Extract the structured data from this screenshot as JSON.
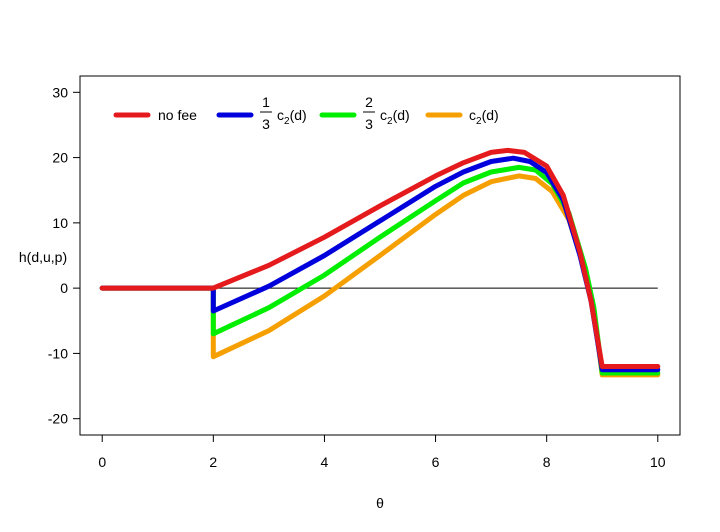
{
  "chart_data": {
    "type": "line",
    "title": "",
    "xlabel": "θ",
    "ylabel": "h(d,u,p)",
    "xlim": [
      -0.4,
      10.4
    ],
    "ylim": [
      -22.5,
      32.5
    ],
    "xticks": [
      0,
      2,
      4,
      6,
      8,
      10
    ],
    "yticks": [
      -20,
      -10,
      0,
      10,
      20,
      30
    ],
    "xtick_labels": [
      "0",
      "2",
      "4",
      "6",
      "8",
      "10"
    ],
    "ytick_labels": [
      "-20",
      "-10",
      "0",
      "10",
      "20",
      "30"
    ],
    "grid": false,
    "legend_position": "top-left",
    "reference_line": {
      "y": 0,
      "x_from": 0,
      "x_to": 10
    },
    "series": [
      {
        "name": "no fee",
        "color": "#e41a1c",
        "points": [
          [
            0,
            0
          ],
          [
            2,
            0
          ],
          [
            3,
            3.5
          ],
          [
            4,
            7.8
          ],
          [
            5,
            12.6
          ],
          [
            6,
            17.2
          ],
          [
            6.5,
            19.2
          ],
          [
            7,
            20.8
          ],
          [
            7.3,
            21.1
          ],
          [
            7.6,
            20.8
          ],
          [
            8,
            18.7
          ],
          [
            8.3,
            14.2
          ],
          [
            8.6,
            5.5
          ],
          [
            8.8,
            -2
          ],
          [
            9,
            -12
          ],
          [
            10,
            -12
          ]
        ]
      },
      {
        "name_parts": {
          "numerator": "1",
          "denominator": "3",
          "base": "c",
          "subscript": "2",
          "arg": "(d)"
        },
        "color": "#0000dd",
        "points": [
          [
            0,
            0
          ],
          [
            2,
            0
          ],
          [
            2,
            -3.5
          ],
          [
            3,
            0.3
          ],
          [
            4,
            5.0
          ],
          [
            5,
            10.3
          ],
          [
            6,
            15.6
          ],
          [
            6.5,
            17.8
          ],
          [
            7,
            19.4
          ],
          [
            7.4,
            19.9
          ],
          [
            7.7,
            19.4
          ],
          [
            8,
            17.7
          ],
          [
            8.3,
            13.5
          ],
          [
            8.6,
            5.0
          ],
          [
            8.8,
            -2
          ],
          [
            9,
            -12.5
          ],
          [
            10,
            -12.5
          ]
        ]
      },
      {
        "name_parts": {
          "numerator": "2",
          "denominator": "3",
          "base": "c",
          "subscript": "2",
          "arg": "(d)"
        },
        "color": "#00ee00",
        "points": [
          [
            0,
            0
          ],
          [
            2,
            0
          ],
          [
            2,
            -7
          ],
          [
            3,
            -3.0
          ],
          [
            4,
            2.0
          ],
          [
            5,
            7.8
          ],
          [
            6,
            13.4
          ],
          [
            6.5,
            16.1
          ],
          [
            7,
            17.8
          ],
          [
            7.5,
            18.5
          ],
          [
            7.8,
            18.1
          ],
          [
            8.1,
            16.0
          ],
          [
            8.4,
            11.5
          ],
          [
            8.7,
            3.0
          ],
          [
            8.85,
            -3
          ],
          [
            9,
            -13
          ],
          [
            10,
            -13
          ]
        ]
      },
      {
        "name_parts": {
          "numerator": "",
          "denominator": "",
          "base": "c",
          "subscript": "2",
          "arg": "(d)"
        },
        "color": "#f5a000",
        "points": [
          [
            0,
            0
          ],
          [
            2,
            0
          ],
          [
            2,
            -10.5
          ],
          [
            3,
            -6.5
          ],
          [
            4,
            -1.2
          ],
          [
            5,
            5.0
          ],
          [
            6,
            11.3
          ],
          [
            6.5,
            14.2
          ],
          [
            7,
            16.3
          ],
          [
            7.5,
            17.2
          ],
          [
            7.8,
            16.8
          ],
          [
            8.1,
            14.8
          ],
          [
            8.4,
            10.5
          ],
          [
            8.7,
            2.5
          ],
          [
            8.85,
            -3.5
          ],
          [
            9,
            -13.3
          ],
          [
            10,
            -13.3
          ]
        ]
      }
    ]
  }
}
